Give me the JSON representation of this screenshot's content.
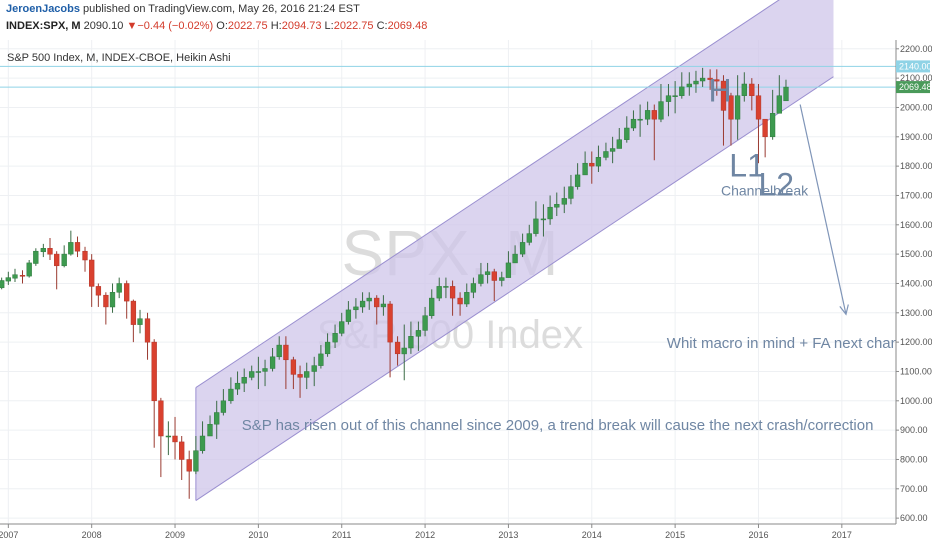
{
  "header": {
    "author": "JeroenJacobs",
    "published": "published on TradingView.com, May 26, 2016 21:24 EST",
    "symbol": "INDEX:SPX, M",
    "last": "2090.10",
    "change": "−0.44 (−0.02%)",
    "open_label": "O:",
    "open": "2022.75",
    "high_label": "H:",
    "high": "2094.73",
    "low_label": "L:",
    "low": "2022.75",
    "close_label": "C:",
    "close": "2069.48"
  },
  "chart_data": {
    "type": "candlestick",
    "title": "S&P 500 Index, M, INDEX-CBOE, Heikin Ashi",
    "watermark_symbol": "SPX, M",
    "watermark_name": "S&P 500 Index",
    "x_ticks": [
      "2007",
      "2008",
      "2009",
      "2010",
      "2011",
      "2012",
      "2013",
      "2014",
      "2015",
      "2016",
      "2017"
    ],
    "y_ticks": [
      "2200.00",
      "2100.00",
      "2000.00",
      "1900.00",
      "1800.00",
      "1700.00",
      "1600.00",
      "1500.00",
      "1400.00",
      "1300.00",
      "1200.00",
      "1100.00",
      "1000.00",
      "900.00",
      "800.00",
      "700.00",
      "600.00"
    ],
    "ylim": [
      580,
      2230
    ],
    "xlim": [
      2006.9,
      2017.65
    ],
    "price_labels": [
      {
        "text": "2140.00",
        "value": 2140,
        "color": "#8fd3e6"
      },
      {
        "text": "2069.48",
        "value": 2069.48,
        "color": "#4a9a5a"
      }
    ],
    "horizontal_lines": [
      {
        "value": 2140,
        "color": "#8fd3e6"
      },
      {
        "value": 2069.48,
        "color": "#8fd3e6"
      }
    ],
    "channel": {
      "lower": [
        [
          2009.25,
          660
        ],
        [
          2016.9,
          2105
        ]
      ],
      "upper": [
        [
          2009.25,
          1045
        ],
        [
          2016.9,
          2490
        ]
      ],
      "fill": "#cfc6ea",
      "stroke": "#9a8fd0"
    },
    "arrow": {
      "from": [
        2016.5,
        2010
      ],
      "to": [
        2017.05,
        1295
      ],
      "color": "#7f95b8"
    },
    "annotations": [
      {
        "text": "H",
        "x": 2015.4,
        "y": 2020,
        "size": 32
      },
      {
        "text": "L1",
        "x": 2015.65,
        "y": 1765,
        "size": 32
      },
      {
        "text": "L2",
        "x": 2016.0,
        "y": 1700,
        "size": 32
      },
      {
        "text": "Channelbreak",
        "x": 2015.55,
        "y": 1700,
        "size": 14
      },
      {
        "text": "Whit macro in mind + FA next channel break is likel",
        "x": 2014.9,
        "y": 1180,
        "size": 15
      },
      {
        "text": "S&P has risen out of this channel since 2009, a trend break will cause the next crash/correction",
        "x": 2009.8,
        "y": 900,
        "size": 15
      }
    ],
    "candles": [
      [
        2006.92,
        1385,
        1420,
        1380,
        1410
      ],
      [
        2007.0,
        1408,
        1440,
        1395,
        1420
      ],
      [
        2007.08,
        1418,
        1450,
        1405,
        1430
      ],
      [
        2007.17,
        1428,
        1445,
        1400,
        1425
      ],
      [
        2007.25,
        1425,
        1480,
        1420,
        1470
      ],
      [
        2007.33,
        1468,
        1520,
        1460,
        1510
      ],
      [
        2007.42,
        1508,
        1535,
        1490,
        1520
      ],
      [
        2007.5,
        1520,
        1555,
        1480,
        1500
      ],
      [
        2007.58,
        1500,
        1510,
        1380,
        1460
      ],
      [
        2007.67,
        1460,
        1530,
        1455,
        1500
      ],
      [
        2007.75,
        1500,
        1580,
        1495,
        1540
      ],
      [
        2007.83,
        1540,
        1560,
        1490,
        1510
      ],
      [
        2007.92,
        1510,
        1525,
        1440,
        1480
      ],
      [
        2008.0,
        1480,
        1500,
        1320,
        1390
      ],
      [
        2008.08,
        1390,
        1400,
        1320,
        1360
      ],
      [
        2008.17,
        1360,
        1370,
        1260,
        1320
      ],
      [
        2008.25,
        1320,
        1400,
        1300,
        1370
      ],
      [
        2008.33,
        1370,
        1420,
        1350,
        1400
      ],
      [
        2008.42,
        1400,
        1410,
        1280,
        1340
      ],
      [
        2008.5,
        1340,
        1345,
        1200,
        1260
      ],
      [
        2008.58,
        1260,
        1310,
        1230,
        1280
      ],
      [
        2008.67,
        1280,
        1300,
        1140,
        1200
      ],
      [
        2008.75,
        1200,
        1210,
        840,
        1000
      ],
      [
        2008.83,
        1000,
        1010,
        740,
        880
      ],
      [
        2008.92,
        880,
        930,
        815,
        880
      ],
      [
        2009.0,
        880,
        945,
        800,
        860
      ],
      [
        2009.08,
        860,
        880,
        730,
        800
      ],
      [
        2009.17,
        800,
        830,
        666,
        760
      ],
      [
        2009.25,
        760,
        880,
        750,
        830
      ],
      [
        2009.33,
        830,
        930,
        820,
        880
      ],
      [
        2009.42,
        880,
        950,
        880,
        920
      ],
      [
        2009.5,
        920,
        1000,
        870,
        960
      ],
      [
        2009.58,
        960,
        1040,
        950,
        1000
      ],
      [
        2009.67,
        1000,
        1080,
        990,
        1040
      ],
      [
        2009.75,
        1040,
        1100,
        1020,
        1060
      ],
      [
        2009.83,
        1060,
        1110,
        1030,
        1080
      ],
      [
        2009.92,
        1080,
        1120,
        1070,
        1100
      ],
      [
        2010.0,
        1100,
        1150,
        1040,
        1100
      ],
      [
        2010.08,
        1100,
        1140,
        1050,
        1110
      ],
      [
        2010.17,
        1110,
        1180,
        1100,
        1150
      ],
      [
        2010.25,
        1150,
        1220,
        1140,
        1190
      ],
      [
        2010.33,
        1190,
        1220,
        1040,
        1140
      ],
      [
        2010.42,
        1140,
        1150,
        1040,
        1090
      ],
      [
        2010.5,
        1090,
        1120,
        1010,
        1080
      ],
      [
        2010.58,
        1080,
        1130,
        1040,
        1100
      ],
      [
        2010.67,
        1100,
        1150,
        1050,
        1120
      ],
      [
        2010.75,
        1120,
        1190,
        1110,
        1160
      ],
      [
        2010.83,
        1160,
        1230,
        1150,
        1200
      ],
      [
        2010.92,
        1200,
        1260,
        1180,
        1230
      ],
      [
        2011.0,
        1230,
        1300,
        1220,
        1270
      ],
      [
        2011.08,
        1270,
        1340,
        1260,
        1310
      ],
      [
        2011.17,
        1310,
        1350,
        1280,
        1320
      ],
      [
        2011.25,
        1320,
        1370,
        1300,
        1340
      ],
      [
        2011.33,
        1340,
        1370,
        1310,
        1350
      ],
      [
        2011.42,
        1350,
        1360,
        1260,
        1320
      ],
      [
        2011.5,
        1320,
        1360,
        1290,
        1330
      ],
      [
        2011.58,
        1330,
        1340,
        1080,
        1200
      ],
      [
        2011.67,
        1200,
        1220,
        1120,
        1160
      ],
      [
        2011.75,
        1160,
        1260,
        1070,
        1180
      ],
      [
        2011.83,
        1180,
        1270,
        1160,
        1220
      ],
      [
        2011.92,
        1220,
        1270,
        1170,
        1240
      ],
      [
        2012.0,
        1240,
        1320,
        1220,
        1290
      ],
      [
        2012.08,
        1290,
        1380,
        1280,
        1350
      ],
      [
        2012.17,
        1350,
        1420,
        1340,
        1390
      ],
      [
        2012.25,
        1390,
        1420,
        1350,
        1390
      ],
      [
        2012.33,
        1390,
        1410,
        1290,
        1350
      ],
      [
        2012.42,
        1350,
        1370,
        1290,
        1330
      ],
      [
        2012.5,
        1330,
        1400,
        1320,
        1370
      ],
      [
        2012.58,
        1370,
        1420,
        1350,
        1400
      ],
      [
        2012.67,
        1400,
        1470,
        1390,
        1430
      ],
      [
        2012.75,
        1430,
        1470,
        1400,
        1440
      ],
      [
        2012.83,
        1440,
        1450,
        1340,
        1410
      ],
      [
        2012.92,
        1410,
        1440,
        1390,
        1420
      ],
      [
        2013.0,
        1420,
        1510,
        1420,
        1470
      ],
      [
        2013.08,
        1470,
        1530,
        1470,
        1500
      ],
      [
        2013.17,
        1500,
        1570,
        1490,
        1540
      ],
      [
        2013.25,
        1540,
        1600,
        1530,
        1570
      ],
      [
        2013.33,
        1570,
        1680,
        1560,
        1620
      ],
      [
        2013.42,
        1620,
        1670,
        1560,
        1620
      ],
      [
        2013.5,
        1620,
        1700,
        1600,
        1660
      ],
      [
        2013.58,
        1660,
        1710,
        1630,
        1670
      ],
      [
        2013.67,
        1670,
        1730,
        1640,
        1690
      ],
      [
        2013.75,
        1690,
        1770,
        1670,
        1730
      ],
      [
        2013.83,
        1730,
        1810,
        1720,
        1770
      ],
      [
        2013.92,
        1770,
        1850,
        1770,
        1810
      ],
      [
        2014.0,
        1810,
        1850,
        1740,
        1800
      ],
      [
        2014.08,
        1800,
        1870,
        1780,
        1830
      ],
      [
        2014.17,
        1830,
        1880,
        1820,
        1850
      ],
      [
        2014.25,
        1850,
        1900,
        1810,
        1860
      ],
      [
        2014.33,
        1860,
        1930,
        1860,
        1890
      ],
      [
        2014.42,
        1890,
        1970,
        1880,
        1930
      ],
      [
        2014.5,
        1930,
        1990,
        1920,
        1960
      ],
      [
        2014.58,
        1960,
        2010,
        1900,
        1960
      ],
      [
        2014.67,
        1960,
        2020,
        1940,
        1990
      ],
      [
        2014.75,
        1990,
        2010,
        1820,
        1960
      ],
      [
        2014.83,
        1960,
        2080,
        1950,
        2020
      ],
      [
        2014.92,
        2020,
        2080,
        1970,
        2040
      ],
      [
        2015.0,
        2040,
        2090,
        1980,
        2040
      ],
      [
        2015.08,
        2040,
        2120,
        2030,
        2070
      ],
      [
        2015.17,
        2070,
        2120,
        2040,
        2080
      ],
      [
        2015.25,
        2080,
        2125,
        2050,
        2090
      ],
      [
        2015.33,
        2090,
        2135,
        2070,
        2100
      ],
      [
        2015.42,
        2100,
        2130,
        2060,
        2095
      ],
      [
        2015.5,
        2095,
        2130,
        2040,
        2090
      ],
      [
        2015.58,
        2090,
        2110,
        1870,
        1990
      ],
      [
        2015.67,
        2040,
        2050,
        1870,
        1960
      ],
      [
        2015.75,
        1960,
        2110,
        1890,
        2040
      ],
      [
        2015.83,
        2040,
        2120,
        2020,
        2080
      ],
      [
        2015.92,
        2080,
        2100,
        1990,
        2040
      ],
      [
        2016.0,
        2040,
        2080,
        1810,
        1960
      ],
      [
        2016.08,
        1960,
        1960,
        1830,
        1900
      ],
      [
        2016.17,
        1900,
        2060,
        1890,
        1980
      ],
      [
        2016.25,
        1980,
        2110,
        1980,
        2040
      ],
      [
        2016.33,
        2022.75,
        2094.73,
        2022.75,
        2069.48
      ]
    ]
  }
}
